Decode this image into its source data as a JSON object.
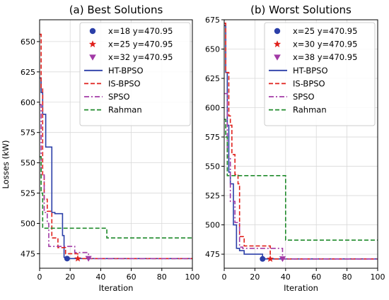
{
  "ylabel": "Losses (kW)",
  "colors": {
    "HT-BPSO": "#2b3fa8",
    "IS-BPSO": "#e0201b",
    "SPSO": "#a23aa6",
    "Rahman": "#1f8a2b",
    "grid": "#d9d9d9"
  },
  "chart_data": [
    {
      "type": "line",
      "title": "(a) Best Solutions",
      "xlabel": "Iteration",
      "ylabel": "Losses (kW)",
      "xlim": [
        0,
        100
      ],
      "ylim": [
        463,
        668
      ],
      "xticks": [
        0,
        20,
        40,
        60,
        80,
        100
      ],
      "yticks": [
        475,
        500,
        525,
        550,
        575,
        600,
        625,
        650
      ],
      "grid": true,
      "legend_position": "top-right",
      "markers": [
        {
          "label": "x=18 y=470.95",
          "x": 18,
          "y": 470.95,
          "shape": "circle",
          "color": "#2b3fa8"
        },
        {
          "label": "x=25 y=470.95",
          "x": 25,
          "y": 470.95,
          "shape": "star",
          "color": "#e0201b"
        },
        {
          "label": "x=32 y=470.95",
          "x": 32,
          "y": 470.95,
          "shape": "triangle-down",
          "color": "#a23aa6"
        }
      ],
      "series": [
        {
          "name": "HT-BPSO",
          "style": "solid",
          "color": "#2b3fa8",
          "x": [
            0,
            1,
            1,
            2,
            2,
            4,
            4,
            8,
            8,
            10,
            10,
            15,
            15,
            16,
            16,
            18,
            18,
            100
          ],
          "y": [
            620,
            620,
            608,
            608,
            590,
            590,
            563,
            563,
            509,
            509,
            508,
            508,
            490,
            490,
            472,
            472,
            470.95,
            470.95
          ]
        },
        {
          "name": "IS-BPSO",
          "style": "dashed",
          "color": "#e0201b",
          "x": [
            0,
            1,
            1,
            2,
            2,
            3,
            3,
            5,
            5,
            8,
            8,
            12,
            12,
            17,
            17,
            25,
            25,
            100
          ],
          "y": [
            656,
            656,
            612,
            612,
            540,
            540,
            520,
            520,
            510,
            510,
            488,
            488,
            480,
            480,
            475,
            475,
            470.95,
            470.95
          ]
        },
        {
          "name": "SPSO",
          "style": "dashdot",
          "color": "#a23aa6",
          "x": [
            0,
            1,
            1,
            3,
            3,
            5,
            5,
            6,
            6,
            11,
            11,
            23,
            23,
            32,
            32,
            100
          ],
          "y": [
            598,
            598,
            540,
            540,
            509,
            509,
            500,
            500,
            481,
            481,
            481,
            481,
            476,
            476,
            470.95,
            470.95
          ]
        },
        {
          "name": "Rahman",
          "style": "dashed",
          "color": "#1f8a2b",
          "x": [
            0,
            1,
            1,
            2,
            2,
            6,
            6,
            43,
            43,
            44,
            44,
            100
          ],
          "y": [
            555,
            555,
            525,
            525,
            496,
            496,
            496,
            496,
            496,
            496,
            488,
            488
          ]
        }
      ]
    },
    {
      "type": "line",
      "title": "(b) Worst Solutions",
      "xlabel": "Iteration",
      "ylabel": "",
      "xlim": [
        0,
        100
      ],
      "ylim": [
        463,
        675
      ],
      "xticks": [
        0,
        20,
        40,
        60,
        80,
        100
      ],
      "yticks": [
        475,
        500,
        525,
        550,
        575,
        600,
        625,
        650,
        675
      ],
      "grid": true,
      "legend_position": "top-right",
      "markers": [
        {
          "label": "x=25 y=470.95",
          "x": 25,
          "y": 470.95,
          "shape": "circle",
          "color": "#2b3fa8"
        },
        {
          "label": "x=30 y=470.95",
          "x": 30,
          "y": 470.95,
          "shape": "star",
          "color": "#e0201b"
        },
        {
          "label": "x=38 y=470.95",
          "x": 38,
          "y": 470.95,
          "shape": "triangle-down",
          "color": "#a23aa6"
        }
      ],
      "series": [
        {
          "name": "HT-BPSO",
          "style": "solid",
          "color": "#2b3fa8",
          "x": [
            0,
            1,
            1,
            2,
            2,
            3,
            3,
            4,
            4,
            6,
            6,
            8,
            8,
            10,
            10,
            13,
            13,
            25,
            25,
            100
          ],
          "y": [
            670,
            670,
            630,
            630,
            585,
            585,
            545,
            545,
            535,
            535,
            500,
            500,
            480,
            480,
            478,
            478,
            475,
            475,
            470.95,
            470.95
          ]
        },
        {
          "name": "IS-BPSO",
          "style": "dashed",
          "color": "#e0201b",
          "x": [
            0,
            1,
            1,
            3,
            3,
            4,
            4,
            5,
            5,
            7,
            7,
            9,
            9,
            10,
            10,
            13,
            13,
            30,
            30,
            100
          ],
          "y": [
            672,
            672,
            630,
            630,
            593,
            593,
            585,
            585,
            560,
            560,
            543,
            543,
            535,
            535,
            490,
            490,
            482,
            482,
            470.95,
            470.95
          ]
        },
        {
          "name": "SPSO",
          "style": "dashdot",
          "color": "#a23aa6",
          "x": [
            0,
            2,
            2,
            4,
            4,
            7,
            7,
            10,
            10,
            12,
            12,
            38,
            38,
            100
          ],
          "y": [
            612,
            612,
            558,
            558,
            520,
            520,
            502,
            502,
            481,
            481,
            480,
            480,
            470.95,
            470.95
          ]
        },
        {
          "name": "Rahman",
          "style": "dashed",
          "color": "#1f8a2b",
          "x": [
            0,
            1,
            1,
            2,
            2,
            4,
            4,
            40,
            40,
            100
          ],
          "y": [
            590,
            590,
            575,
            575,
            542,
            542,
            542,
            542,
            487,
            487
          ]
        }
      ]
    }
  ]
}
